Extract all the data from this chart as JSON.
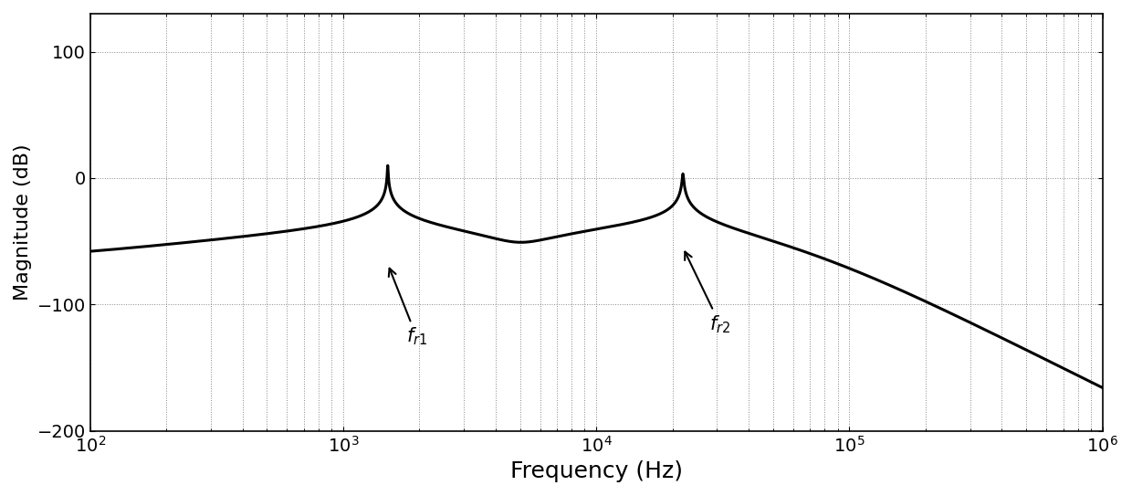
{
  "xlabel": "Frequency (Hz)",
  "ylabel": "Magnitude (dB)",
  "xlim_log": [
    2,
    6
  ],
  "ylim": [
    -200,
    130
  ],
  "yticks": [
    -200,
    -100,
    0,
    100
  ],
  "line_color": "#000000",
  "line_width": 2.2,
  "fr1": 1500,
  "fr2": 22000,
  "Q1": 200,
  "Q2": 100,
  "K_db": -65,
  "grid_color": "#888888",
  "grid_style": ":",
  "grid_linewidth": 0.7,
  "xlabel_fontsize": 18,
  "ylabel_fontsize": 16,
  "tick_fontsize": 14,
  "annot1_label": "$f_{r1}$",
  "annot2_label": "$f_{r2}$",
  "figsize": [
    12.4,
    5.43
  ],
  "dpi": 100
}
